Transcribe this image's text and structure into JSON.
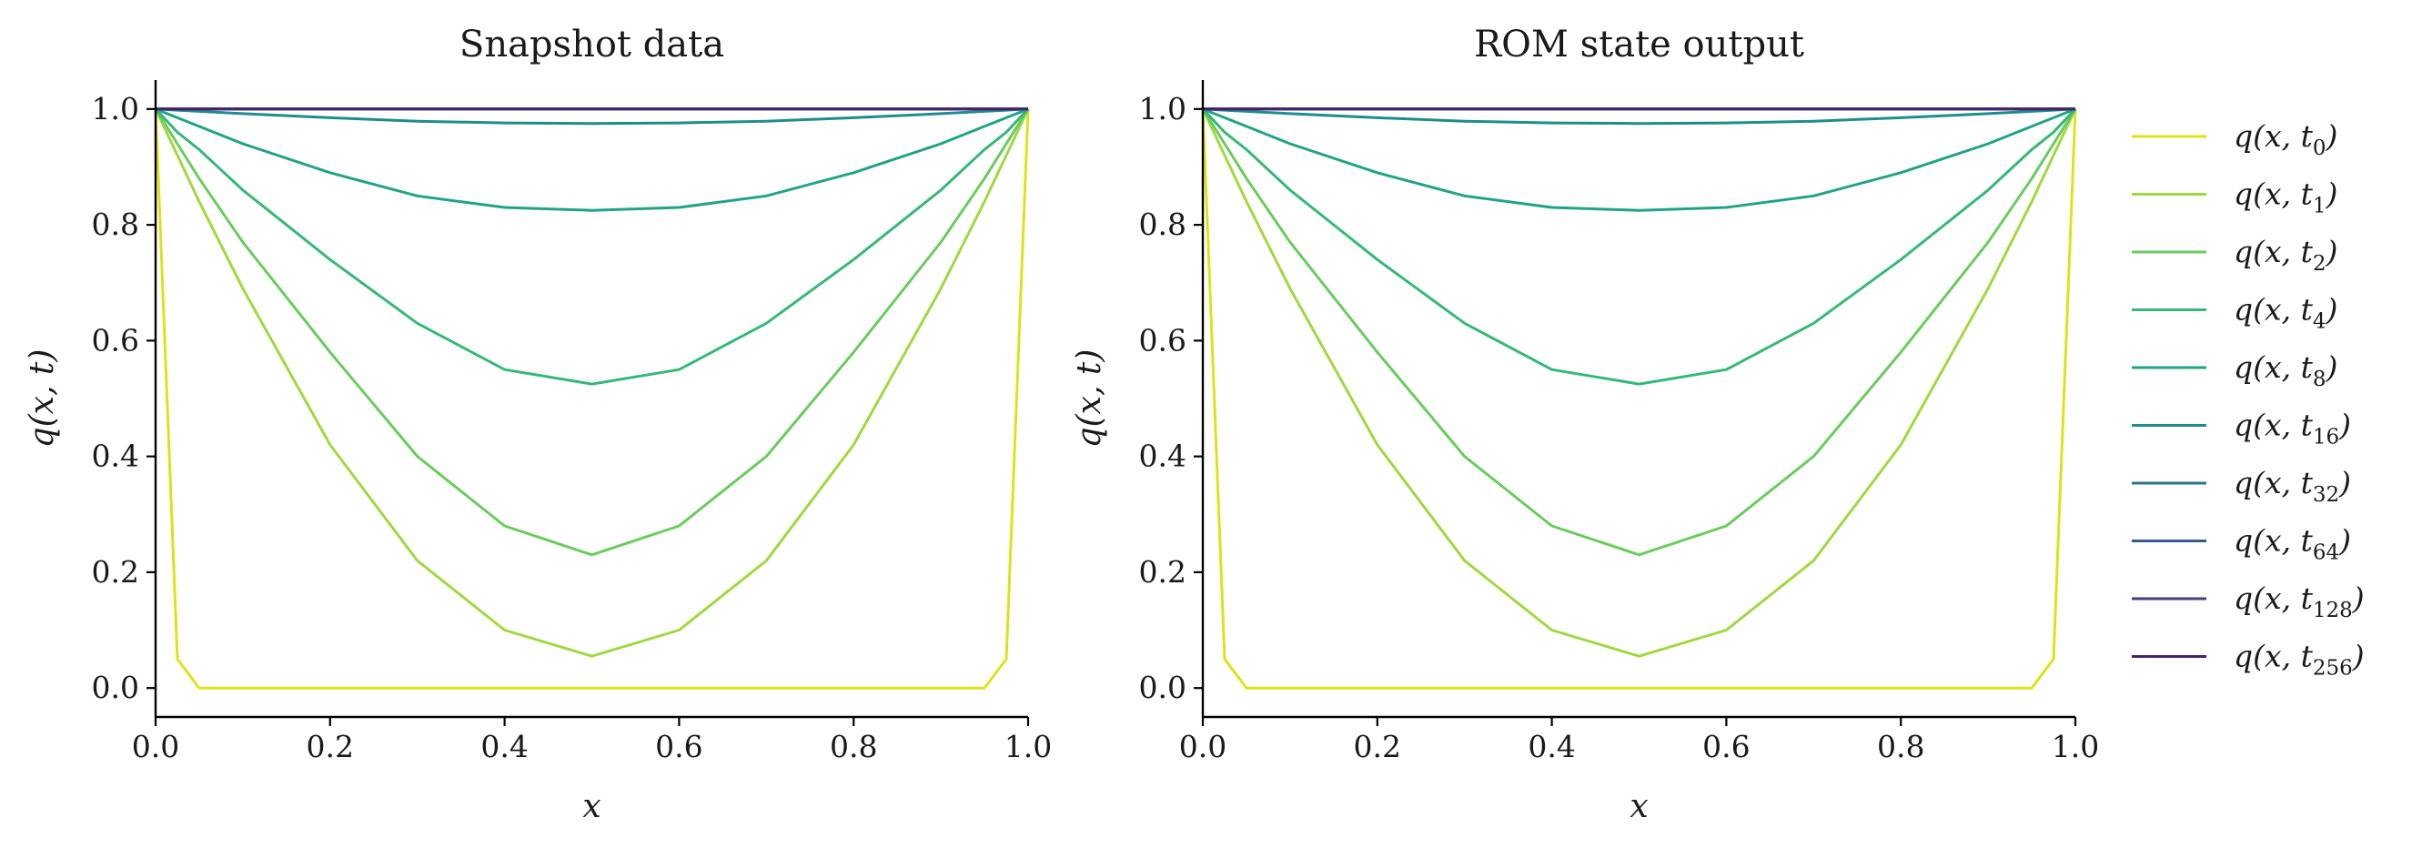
{
  "chart_data": [
    {
      "type": "line",
      "title": "Snapshot data",
      "xlabel": "x",
      "ylabel": "q(x, t)",
      "xlim": [
        0.0,
        1.0
      ],
      "ylim": [
        -0.05,
        1.05
      ],
      "xticks": [
        "0.0",
        "0.2",
        "0.4",
        "0.6",
        "0.8",
        "1.0"
      ],
      "yticks": [
        "0.0",
        "0.2",
        "0.4",
        "0.6",
        "0.8",
        "1.0"
      ],
      "grid": false,
      "x": [
        0.0,
        0.025,
        0.05,
        0.1,
        0.2,
        0.3,
        0.4,
        0.5,
        0.6,
        0.7,
        0.8,
        0.9,
        0.95,
        0.975,
        1.0
      ],
      "series": [
        {
          "label": "t0",
          "color": "#dde318",
          "values": [
            1.0,
            0.05,
            0.0,
            0.0,
            0.0,
            0.0,
            0.0,
            0.0,
            0.0,
            0.0,
            0.0,
            0.0,
            0.0,
            0.05,
            1.0
          ]
        },
        {
          "label": "t1",
          "color": "#a2d83f",
          "values": [
            1.0,
            0.92,
            0.84,
            0.69,
            0.42,
            0.22,
            0.1,
            0.055,
            0.1,
            0.22,
            0.42,
            0.69,
            0.84,
            0.92,
            1.0
          ]
        },
        {
          "label": "t2",
          "color": "#69cc5c",
          "values": [
            1.0,
            0.94,
            0.88,
            0.77,
            0.58,
            0.4,
            0.28,
            0.23,
            0.28,
            0.4,
            0.58,
            0.77,
            0.88,
            0.94,
            1.0
          ]
        },
        {
          "label": "t4",
          "color": "#36b878",
          "values": [
            1.0,
            0.96,
            0.93,
            0.86,
            0.74,
            0.63,
            0.55,
            0.525,
            0.55,
            0.63,
            0.74,
            0.86,
            0.93,
            0.96,
            1.0
          ]
        },
        {
          "label": "t8",
          "color": "#21a386",
          "values": [
            1.0,
            0.985,
            0.97,
            0.94,
            0.89,
            0.85,
            0.83,
            0.825,
            0.83,
            0.85,
            0.89,
            0.94,
            0.97,
            0.985,
            1.0
          ]
        },
        {
          "label": "t16",
          "color": "#1f8c8d",
          "values": [
            1.0,
            0.998,
            0.996,
            0.992,
            0.985,
            0.979,
            0.976,
            0.975,
            0.976,
            0.979,
            0.985,
            0.992,
            0.996,
            0.998,
            1.0
          ]
        },
        {
          "label": "t32",
          "color": "#2b748e",
          "values": [
            1.0,
            1.0,
            1.0,
            1.0,
            1.0,
            1.0,
            1.0,
            1.0,
            1.0,
            1.0,
            1.0,
            1.0,
            1.0,
            1.0,
            1.0
          ]
        },
        {
          "label": "t64",
          "color": "#355c8c",
          "values": [
            1.0,
            1.0,
            1.0,
            1.0,
            1.0,
            1.0,
            1.0,
            1.0,
            1.0,
            1.0,
            1.0,
            1.0,
            1.0,
            1.0,
            1.0
          ]
        },
        {
          "label": "t128",
          "color": "#433e85",
          "values": [
            1.0,
            1.0,
            1.0,
            1.0,
            1.0,
            1.0,
            1.0,
            1.0,
            1.0,
            1.0,
            1.0,
            1.0,
            1.0,
            1.0,
            1.0
          ]
        },
        {
          "label": "t256",
          "color": "#46226a",
          "values": [
            1.0,
            1.0,
            1.0,
            1.0,
            1.0,
            1.0,
            1.0,
            1.0,
            1.0,
            1.0,
            1.0,
            1.0,
            1.0,
            1.0,
            1.0
          ]
        }
      ]
    },
    {
      "type": "line",
      "title": "ROM state output",
      "xlabel": "x",
      "ylabel": "q(x, t)",
      "xlim": [
        0.0,
        1.0
      ],
      "ylim": [
        -0.05,
        1.05
      ],
      "xticks": [
        "0.0",
        "0.2",
        "0.4",
        "0.6",
        "0.8",
        "1.0"
      ],
      "yticks": [
        "0.0",
        "0.2",
        "0.4",
        "0.6",
        "0.8",
        "1.0"
      ],
      "grid": false,
      "x": [
        0.0,
        0.025,
        0.05,
        0.1,
        0.2,
        0.3,
        0.4,
        0.5,
        0.6,
        0.7,
        0.8,
        0.9,
        0.95,
        0.975,
        1.0
      ],
      "series": [
        {
          "label": "t0",
          "color": "#dde318",
          "values": [
            1.0,
            0.05,
            0.0,
            0.0,
            0.0,
            0.0,
            0.0,
            0.0,
            0.0,
            0.0,
            0.0,
            0.0,
            0.0,
            0.05,
            1.0
          ]
        },
        {
          "label": "t1",
          "color": "#a2d83f",
          "values": [
            1.0,
            0.92,
            0.84,
            0.69,
            0.42,
            0.22,
            0.1,
            0.055,
            0.1,
            0.22,
            0.42,
            0.69,
            0.84,
            0.92,
            1.0
          ]
        },
        {
          "label": "t2",
          "color": "#69cc5c",
          "values": [
            1.0,
            0.94,
            0.88,
            0.77,
            0.58,
            0.4,
            0.28,
            0.23,
            0.28,
            0.4,
            0.58,
            0.77,
            0.88,
            0.94,
            1.0
          ]
        },
        {
          "label": "t4",
          "color": "#36b878",
          "values": [
            1.0,
            0.96,
            0.93,
            0.86,
            0.74,
            0.63,
            0.55,
            0.525,
            0.55,
            0.63,
            0.74,
            0.86,
            0.93,
            0.96,
            1.0
          ]
        },
        {
          "label": "t8",
          "color": "#21a386",
          "values": [
            1.0,
            0.985,
            0.97,
            0.94,
            0.89,
            0.85,
            0.83,
            0.825,
            0.83,
            0.85,
            0.89,
            0.94,
            0.97,
            0.985,
            1.0
          ]
        },
        {
          "label": "t16",
          "color": "#1f8c8d",
          "values": [
            1.0,
            0.998,
            0.996,
            0.992,
            0.985,
            0.979,
            0.976,
            0.975,
            0.976,
            0.979,
            0.985,
            0.992,
            0.996,
            0.998,
            1.0
          ]
        },
        {
          "label": "t32",
          "color": "#2b748e",
          "values": [
            1.0,
            1.0,
            1.0,
            1.0,
            1.0,
            1.0,
            1.0,
            1.0,
            1.0,
            1.0,
            1.0,
            1.0,
            1.0,
            1.0,
            1.0
          ]
        },
        {
          "label": "t64",
          "color": "#355c8c",
          "values": [
            1.0,
            1.0,
            1.0,
            1.0,
            1.0,
            1.0,
            1.0,
            1.0,
            1.0,
            1.0,
            1.0,
            1.0,
            1.0,
            1.0,
            1.0
          ]
        },
        {
          "label": "t128",
          "color": "#433e85",
          "values": [
            1.0,
            1.0,
            1.0,
            1.0,
            1.0,
            1.0,
            1.0,
            1.0,
            1.0,
            1.0,
            1.0,
            1.0,
            1.0,
            1.0,
            1.0
          ]
        },
        {
          "label": "t256",
          "color": "#46226a",
          "values": [
            1.0,
            1.0,
            1.0,
            1.0,
            1.0,
            1.0,
            1.0,
            1.0,
            1.0,
            1.0,
            1.0,
            1.0,
            1.0,
            1.0,
            1.0
          ]
        }
      ]
    }
  ],
  "legend": {
    "placement": "right",
    "entries": [
      {
        "prefix": "q(x, t",
        "sub": "0",
        "suffix": ")",
        "color": "#dde318"
      },
      {
        "prefix": "q(x, t",
        "sub": "1",
        "suffix": ")",
        "color": "#a2d83f"
      },
      {
        "prefix": "q(x, t",
        "sub": "2",
        "suffix": ")",
        "color": "#69cc5c"
      },
      {
        "prefix": "q(x, t",
        "sub": "4",
        "suffix": ")",
        "color": "#36b878"
      },
      {
        "prefix": "q(x, t",
        "sub": "8",
        "suffix": ")",
        "color": "#21a386"
      },
      {
        "prefix": "q(x, t",
        "sub": "16",
        "suffix": ")",
        "color": "#1f8c8d"
      },
      {
        "prefix": "q(x, t",
        "sub": "32",
        "suffix": ")",
        "color": "#2b748e"
      },
      {
        "prefix": "q(x, t",
        "sub": "64",
        "suffix": ")",
        "color": "#355c8c"
      },
      {
        "prefix": "q(x, t",
        "sub": "128",
        "suffix": ")",
        "color": "#433e85"
      },
      {
        "prefix": "q(x, t",
        "sub": "256",
        "suffix": ")",
        "color": "#46226a"
      }
    ]
  }
}
